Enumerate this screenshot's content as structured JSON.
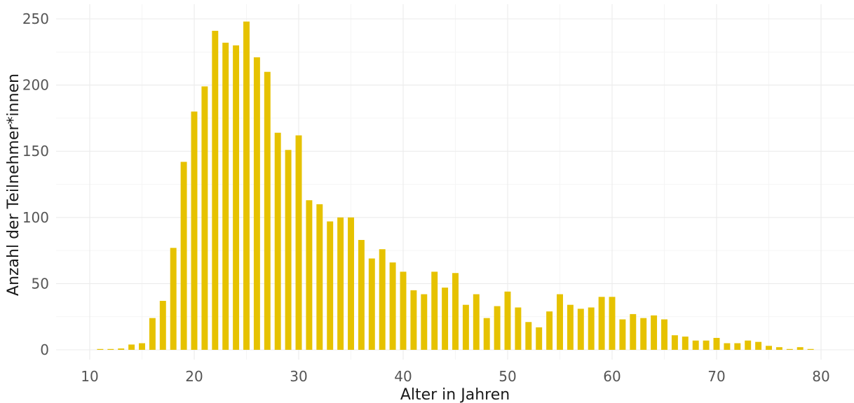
{
  "chart_data": {
    "type": "bar",
    "xlabel": "Alter in Jahren",
    "ylabel": "Anzahl der Teilnehmer*innen",
    "xlim": [
      9.5,
      80.5
    ],
    "ylim": [
      0,
      250
    ],
    "x_ticks": [
      10,
      20,
      30,
      40,
      50,
      60,
      70,
      80
    ],
    "y_ticks": [
      0,
      50,
      100,
      150,
      200,
      250
    ],
    "grid": true,
    "bar_color": "#E6C200",
    "x": [
      11,
      12,
      13,
      14,
      15,
      16,
      17,
      18,
      19,
      20,
      21,
      22,
      23,
      24,
      25,
      26,
      27,
      28,
      29,
      30,
      31,
      32,
      33,
      34,
      35,
      36,
      37,
      38,
      39,
      40,
      41,
      42,
      43,
      44,
      45,
      46,
      47,
      48,
      49,
      50,
      51,
      52,
      53,
      54,
      55,
      56,
      57,
      58,
      59,
      60,
      61,
      62,
      63,
      64,
      65,
      66,
      67,
      68,
      69,
      70,
      71,
      72,
      73,
      74,
      75,
      76,
      77,
      78,
      79
    ],
    "values": [
      0,
      0,
      1,
      4,
      5,
      24,
      37,
      77,
      142,
      180,
      199,
      241,
      232,
      230,
      248,
      221,
      210,
      164,
      151,
      162,
      113,
      110,
      97,
      100,
      100,
      83,
      69,
      76,
      66,
      59,
      45,
      42,
      59,
      47,
      58,
      34,
      42,
      24,
      33,
      44,
      32,
      21,
      17,
      29,
      42,
      34,
      31,
      32,
      40,
      40,
      23,
      27,
      24,
      26,
      23,
      11,
      10,
      7,
      7,
      9,
      5,
      5,
      7,
      6,
      3,
      2,
      0,
      2,
      0
    ]
  }
}
